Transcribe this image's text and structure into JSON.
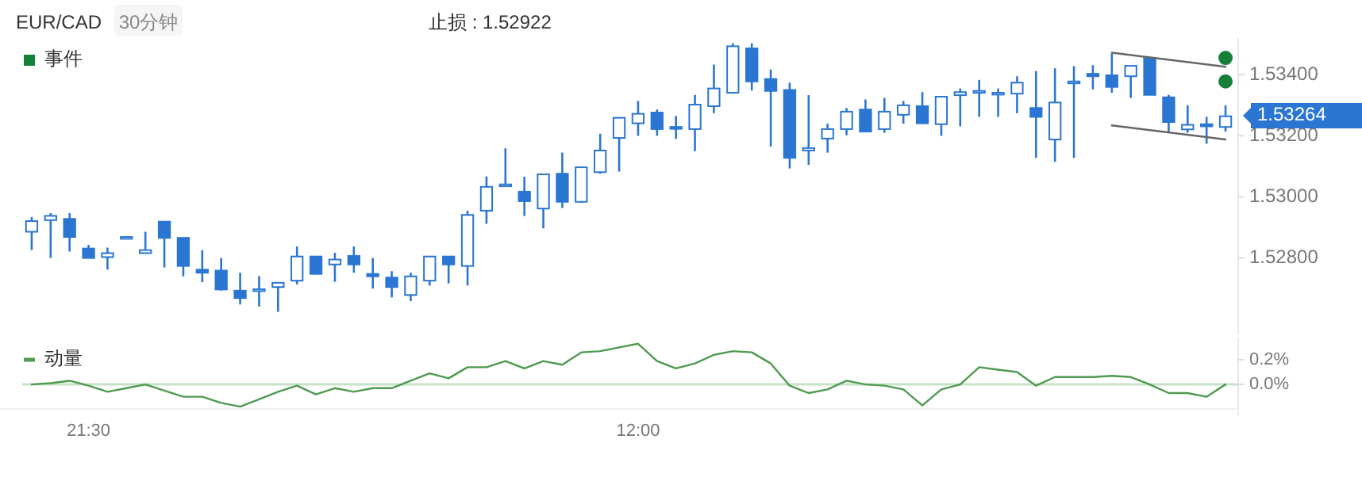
{
  "chart_data": [
    {
      "type": "candlestick",
      "title": "EUR/CAD",
      "subtitle": "30分钟",
      "annotations": [
        "止损 : 1.52922",
        "1.53264"
      ],
      "categories": [
        null,
        null,
        null,
        null,
        null,
        null,
        null,
        null,
        null,
        null,
        null,
        null,
        null,
        null,
        null,
        null,
        null,
        null,
        null,
        null,
        null,
        null,
        null,
        null,
        null,
        null,
        null,
        null,
        null,
        null,
        null,
        null,
        null,
        null,
        null,
        null,
        null,
        null,
        null,
        null,
        null,
        null,
        null,
        null,
        null,
        null,
        null,
        null,
        null,
        null,
        null,
        null,
        null,
        null,
        null,
        null,
        null,
        null,
        null,
        null,
        null,
        null,
        null,
        null
      ],
      "ylim": [
        1.5255,
        1.5352
      ],
      "yticks": [
        {
          "value": 1.528,
          "label": "1.52800"
        },
        {
          "value": 1.53,
          "label": "1.53000"
        },
        {
          "value": 1.532,
          "label": "1.53200"
        },
        {
          "value": 1.534,
          "label": "1.53400"
        }
      ],
      "tick_labels": "y",
      "legend": "top left",
      "series": [
        {
          "type": "candlestick",
          "color": "#2a76d2",
          "ohlc": [
            [
              1.52886,
              1.52934,
              1.52826,
              1.52921
            ],
            [
              1.52924,
              1.52947,
              1.528,
              1.52938
            ],
            [
              1.52928,
              1.52947,
              1.52821,
              1.52869
            ],
            [
              1.52831,
              1.52843,
              1.528,
              1.528
            ],
            [
              1.52803,
              1.52834,
              1.52762,
              1.52816
            ],
            [
              1.52869,
              1.52872,
              1.52866,
              1.52869
            ],
            [
              1.52816,
              1.52886,
              1.52816,
              1.52826
            ],
            [
              1.52919,
              1.52919,
              1.52769,
              1.52866
            ],
            [
              1.52866,
              1.52866,
              1.5274,
              1.52774
            ],
            [
              1.52762,
              1.52826,
              1.52721,
              1.52752
            ],
            [
              1.52759,
              1.528,
              1.52693,
              1.52697
            ],
            [
              1.52693,
              1.52752,
              1.52648,
              1.52669
            ],
            [
              1.52693,
              1.52741,
              1.52641,
              1.52698
            ],
            [
              1.52705,
              1.52719,
              1.52624,
              1.52719
            ],
            [
              1.52726,
              1.52838,
              1.52714,
              1.52805
            ],
            [
              1.52805,
              1.52805,
              1.52748,
              1.52748
            ],
            [
              1.52779,
              1.52817,
              1.52722,
              1.52795
            ],
            [
              1.52807,
              1.52838,
              1.52752,
              1.52779
            ],
            [
              1.52748,
              1.528,
              1.527,
              1.5274
            ],
            [
              1.52736,
              1.52757,
              1.52671,
              1.52705
            ],
            [
              1.52679,
              1.52752,
              1.52659,
              1.5274
            ],
            [
              1.52726,
              1.52805,
              1.5271,
              1.52805
            ],
            [
              1.52805,
              1.52805,
              1.52717,
              1.52779
            ],
            [
              1.52774,
              1.52955,
              1.5271,
              1.52941
            ],
            [
              1.52955,
              1.53067,
              1.52912,
              1.53033
            ],
            [
              1.53036,
              1.53159,
              1.53036,
              1.53041
            ],
            [
              1.53017,
              1.53066,
              1.52938,
              1.52986
            ],
            [
              1.52962,
              1.53074,
              1.52897,
              1.53074
            ],
            [
              1.53076,
              1.53145,
              1.52964,
              1.52984
            ],
            [
              1.52984,
              1.531,
              1.52981,
              1.53097
            ],
            [
              1.53081,
              1.53207,
              1.53076,
              1.53152
            ],
            [
              1.53193,
              1.53259,
              1.53083,
              1.53259
            ],
            [
              1.53241,
              1.53314,
              1.532,
              1.53272
            ],
            [
              1.53276,
              1.53286,
              1.532,
              1.53222
            ],
            [
              1.53229,
              1.53265,
              1.5319,
              1.53224
            ],
            [
              1.53222,
              1.53334,
              1.5315,
              1.53302
            ],
            [
              1.53297,
              1.53433,
              1.53274,
              1.53355
            ],
            [
              1.53341,
              1.53503,
              1.53338,
              1.53493
            ],
            [
              1.53486,
              1.53503,
              1.53348,
              1.53378
            ],
            [
              1.53386,
              1.53417,
              1.53165,
              1.53347
            ],
            [
              1.5335,
              1.53374,
              1.53093,
              1.53128
            ],
            [
              1.53152,
              1.53333,
              1.53105,
              1.5316
            ],
            [
              1.53191,
              1.5324,
              1.53145,
              1.53222
            ],
            [
              1.53222,
              1.53291,
              1.53202,
              1.53279
            ],
            [
              1.53286,
              1.53319,
              1.53214,
              1.53214
            ],
            [
              1.53222,
              1.53324,
              1.5321,
              1.53279
            ],
            [
              1.53269,
              1.53314,
              1.5324,
              1.533
            ],
            [
              1.53297,
              1.53343,
              1.53241,
              1.53241
            ],
            [
              1.53238,
              1.53328,
              1.532,
              1.53328
            ],
            [
              1.53333,
              1.53355,
              1.53231,
              1.53343
            ],
            [
              1.53343,
              1.53383,
              1.53262,
              1.53347
            ],
            [
              1.53336,
              1.53355,
              1.53262,
              1.53341
            ],
            [
              1.53338,
              1.53395,
              1.53274,
              1.53374
            ],
            [
              1.53291,
              1.53412,
              1.53128,
              1.53262
            ],
            [
              1.53188,
              1.53421,
              1.53115,
              1.53309
            ],
            [
              1.53372,
              1.53428,
              1.53128,
              1.53378
            ],
            [
              1.53403,
              1.53431,
              1.53352,
              1.53395
            ],
            [
              1.53398,
              1.53469,
              1.53341,
              1.5336
            ],
            [
              1.53395,
              1.53429,
              1.53324,
              1.53429
            ],
            [
              1.53455,
              1.53455,
              1.53334,
              1.53334
            ],
            [
              1.53326,
              1.53334,
              1.53214,
              1.53245
            ],
            [
              1.53221,
              1.533,
              1.5321,
              1.53236
            ],
            [
              1.53238,
              1.53262,
              1.53174,
              1.53231
            ],
            [
              1.53229,
              1.533,
              1.53214,
              1.53264
            ]
          ]
        },
        {
          "type": "line",
          "color": "#666666",
          "values": [
            null,
            null,
            null,
            null,
            null,
            null,
            null,
            null,
            null,
            null,
            null,
            null,
            null,
            null,
            null,
            null,
            null,
            null,
            null,
            null,
            null,
            null,
            null,
            null,
            null,
            null,
            null,
            null,
            null,
            null,
            null,
            null,
            null,
            null,
            null,
            null,
            null,
            null,
            null,
            null,
            null,
            null,
            null,
            null,
            null,
            null,
            null,
            null,
            null,
            null,
            null,
            null,
            null,
            null,
            null,
            null,
            null,
            1.53472,
            null,
            null,
            null,
            null,
            null,
            1.53426
          ]
        },
        {
          "type": "line",
          "color": "#666666",
          "values": [
            null,
            null,
            null,
            null,
            null,
            null,
            null,
            null,
            null,
            null,
            null,
            null,
            null,
            null,
            null,
            null,
            null,
            null,
            null,
            null,
            null,
            null,
            null,
            null,
            null,
            null,
            null,
            null,
            null,
            null,
            null,
            null,
            null,
            null,
            null,
            null,
            null,
            null,
            null,
            null,
            null,
            null,
            null,
            null,
            null,
            null,
            null,
            null,
            null,
            null,
            null,
            null,
            null,
            null,
            null,
            null,
            null,
            1.53234,
            null,
            null,
            null,
            null,
            null,
            1.53188
          ]
        },
        {
          "type": "scatter",
          "name": "事件",
          "color": "#168039",
          "marker": "circle",
          "values": [
            null,
            null,
            null,
            null,
            null,
            null,
            null,
            null,
            null,
            null,
            null,
            null,
            null,
            null,
            null,
            null,
            null,
            null,
            null,
            null,
            null,
            null,
            null,
            null,
            null,
            null,
            null,
            null,
            null,
            null,
            null,
            null,
            null,
            null,
            null,
            null,
            null,
            null,
            null,
            null,
            null,
            null,
            null,
            null,
            null,
            null,
            null,
            null,
            null,
            null,
            null,
            null,
            null,
            null,
            null,
            null,
            null,
            null,
            null,
            null,
            null,
            null,
            null,
            1.53455
          ]
        },
        {
          "type": "scatter",
          "color": "#168039",
          "marker": "circle",
          "values": [
            null,
            null,
            null,
            null,
            null,
            null,
            null,
            null,
            null,
            null,
            null,
            null,
            null,
            null,
            null,
            null,
            null,
            null,
            null,
            null,
            null,
            null,
            null,
            null,
            null,
            null,
            null,
            null,
            null,
            null,
            null,
            null,
            null,
            null,
            null,
            null,
            null,
            null,
            null,
            null,
            null,
            null,
            null,
            null,
            null,
            null,
            null,
            null,
            null,
            null,
            null,
            null,
            null,
            null,
            null,
            null,
            null,
            null,
            null,
            null,
            null,
            null,
            null,
            1.53378
          ]
        }
      ]
    },
    {
      "type": "line",
      "legend": "top left",
      "categories": [
        null,
        null,
        null,
        "21:30",
        null,
        null,
        null,
        null,
        null,
        null,
        null,
        null,
        null,
        null,
        null,
        null,
        null,
        null,
        null,
        null,
        null,
        null,
        null,
        null,
        null,
        null,
        null,
        null,
        null,
        null,
        null,
        null,
        "12:00",
        null,
        null,
        null,
        null,
        null,
        null,
        null,
        null,
        null,
        null,
        null,
        null,
        null,
        null,
        null,
        null,
        null,
        null,
        null,
        null,
        null,
        null,
        null,
        null,
        null,
        null,
        null,
        null,
        null,
        null,
        null
      ],
      "ylim": [
        -0.25,
        0.38
      ],
      "yticks": [
        {
          "value": 0,
          "label": "0.0%"
        },
        {
          "value": 0.2,
          "label": "0.2%"
        }
      ],
      "ref_lines": [
        {
          "axis": "y",
          "value": 0,
          "color": "#c8e2c8"
        }
      ],
      "series": [
        {
          "name": "动量",
          "color": "#4f9a4f",
          "values": [
            0.0,
            0.01,
            0.03,
            -0.01,
            -0.06,
            -0.03,
            0.0,
            -0.05,
            -0.1,
            -0.1,
            -0.15,
            -0.18,
            -0.12,
            -0.06,
            -0.01,
            -0.08,
            -0.03,
            -0.06,
            -0.03,
            -0.03,
            0.03,
            0.09,
            0.05,
            0.14,
            0.14,
            0.19,
            0.13,
            0.19,
            0.16,
            0.26,
            0.27,
            0.3,
            0.33,
            0.19,
            0.13,
            0.17,
            0.24,
            0.27,
            0.26,
            0.17,
            -0.01,
            -0.07,
            -0.04,
            0.03,
            0.0,
            -0.01,
            -0.04,
            -0.17,
            -0.04,
            0.0,
            0.14,
            0.12,
            0.1,
            -0.01,
            0.06,
            0.06,
            0.06,
            0.07,
            0.06,
            0.0,
            -0.07,
            -0.07,
            -0.1,
            0.0
          ]
        }
      ]
    }
  ]
}
